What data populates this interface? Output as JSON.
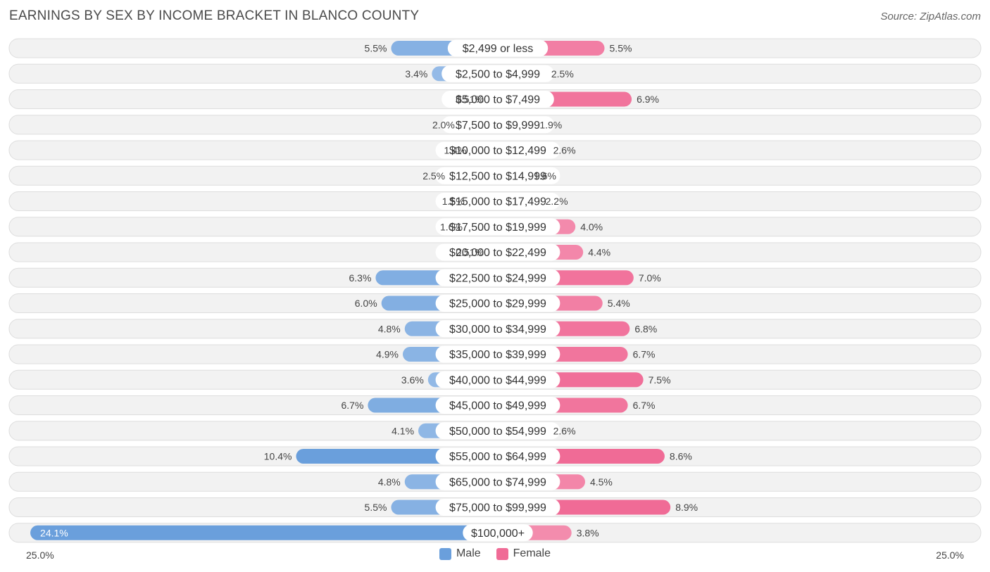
{
  "header": {
    "title": "EARNINGS BY SEX BY INCOME BRACKET IN BLANCO COUNTY",
    "source": "Source: ZipAtlas.com"
  },
  "axis": {
    "left_label": "25.0%",
    "right_label": "25.0%"
  },
  "legend": {
    "male_label": "Male",
    "female_label": "Female"
  },
  "colors": {
    "male_dark": "#6a9fdc",
    "male_light": "#a9c8ec",
    "female_dark": "#f06b96",
    "female_light": "#f6a9c2",
    "row_bg": "#f2f2f2",
    "row_border": "#dddddd"
  },
  "chart_data": {
    "type": "bar",
    "orientation": "horizontal-diverging",
    "title": "EARNINGS BY SEX BY INCOME BRACKET IN BLANCO COUNTY",
    "xlim": [
      -25.0,
      25.0
    ],
    "unit": "%",
    "categories": [
      "$2,499 or less",
      "$2,500 to $4,999",
      "$5,000 to $7,499",
      "$7,500 to $9,999",
      "$10,000 to $12,499",
      "$12,500 to $14,999",
      "$15,000 to $17,499",
      "$17,500 to $19,999",
      "$20,000 to $22,499",
      "$22,500 to $24,999",
      "$25,000 to $29,999",
      "$30,000 to $34,999",
      "$35,000 to $39,999",
      "$40,000 to $44,999",
      "$45,000 to $49,999",
      "$50,000 to $54,999",
      "$55,000 to $64,999",
      "$65,000 to $74,999",
      "$75,000 to $99,999",
      "$100,000+"
    ],
    "series": [
      {
        "name": "Male",
        "values": [
          5.5,
          3.4,
          0.51,
          2.0,
          1.4,
          2.5,
          1.5,
          1.6,
          0.51,
          6.3,
          6.0,
          4.8,
          4.9,
          3.6,
          6.7,
          4.1,
          10.4,
          4.8,
          5.5,
          24.1
        ],
        "labels": [
          "5.5%",
          "3.4%",
          "0.51%",
          "2.0%",
          "1.4%",
          "2.5%",
          "1.5%",
          "1.6%",
          "0.51%",
          "6.3%",
          "6.0%",
          "4.8%",
          "4.9%",
          "3.6%",
          "6.7%",
          "4.1%",
          "10.4%",
          "4.8%",
          "5.5%",
          "24.1%"
        ]
      },
      {
        "name": "Female",
        "values": [
          5.5,
          2.5,
          6.9,
          1.9,
          2.6,
          1.6,
          2.2,
          4.0,
          4.4,
          7.0,
          5.4,
          6.8,
          6.7,
          7.5,
          6.7,
          2.6,
          8.6,
          4.5,
          8.9,
          3.8
        ],
        "labels": [
          "5.5%",
          "2.5%",
          "6.9%",
          "1.9%",
          "2.6%",
          "1.6%",
          "2.2%",
          "4.0%",
          "4.4%",
          "7.0%",
          "5.4%",
          "6.8%",
          "6.7%",
          "7.5%",
          "6.7%",
          "2.6%",
          "8.6%",
          "4.5%",
          "8.9%",
          "3.8%"
        ]
      }
    ]
  }
}
